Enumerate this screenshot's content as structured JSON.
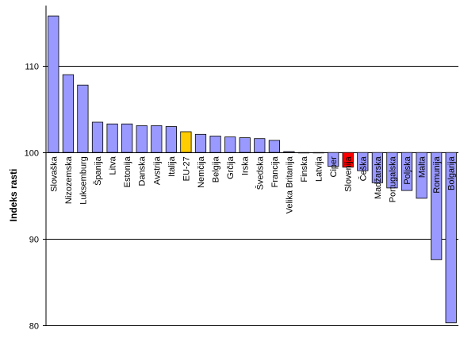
{
  "chart_data": {
    "type": "bar",
    "ylabel": "Indeks rasti",
    "xlabel": "",
    "title": "",
    "ylim": [
      80,
      117
    ],
    "yticks": [
      80,
      90,
      100,
      110
    ],
    "baseline": 100,
    "grid": "horizontal",
    "colors": {
      "default": "#9999ff",
      "eu": "#ffcc00",
      "slovenia": "#ff0000",
      "edge": "#000000",
      "grid": "#000000"
    },
    "categories": [
      "Slovaška",
      "Nizozemska",
      "Luksemburg",
      "Španija",
      "Litva",
      "Estonija",
      "Danska",
      "Avstrija",
      "Italija",
      "EU-27",
      "Nemčija",
      "Belgija",
      "Grčija",
      "Irska",
      "Švedska",
      "Francija",
      "Velika Britanija",
      "Finska",
      "Latvija",
      "Ciper",
      "Slovenija",
      "Češka",
      "Madžarska",
      "Portugalska",
      "Poljska",
      "Malta",
      "Romunija",
      "Bolgarija"
    ],
    "values": [
      115.8,
      109.0,
      107.8,
      103.5,
      103.3,
      103.3,
      103.1,
      103.1,
      103.0,
      102.4,
      102.1,
      101.9,
      101.8,
      101.7,
      101.6,
      101.4,
      100.1,
      100.0,
      100.0,
      98.4,
      98.3,
      97.9,
      96.5,
      95.9,
      95.6,
      94.7,
      87.6,
      80.3
    ],
    "highlight": {
      "EU-27": "eu",
      "Slovenija": "slovenia"
    }
  }
}
